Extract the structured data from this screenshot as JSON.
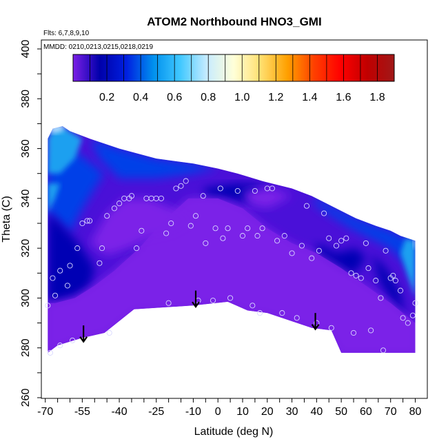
{
  "chart_data": {
    "type": "heatmap",
    "title": "ATOM2 Northbound HNO3_GMI",
    "notes": {
      "flights": "Flts: 6,7,8,9,10",
      "dates": "MMDD: 0210,0213,0215,0218,0219"
    },
    "xlabel": "Latitude (deg N)",
    "ylabel": "Theta (C)",
    "xlim": [
      -70,
      82
    ],
    "ylim": [
      260,
      400
    ],
    "x_ticks": [
      -70,
      -55,
      -40,
      -25,
      -10,
      0,
      10,
      20,
      30,
      40,
      50,
      60,
      70,
      80
    ],
    "y_ticks": [
      260,
      280,
      300,
      320,
      340,
      360,
      380,
      400
    ],
    "colorbar": {
      "range": [
        0,
        1.9
      ],
      "ticks": [
        0.2,
        0.4,
        0.6,
        0.8,
        1.0,
        1.2,
        1.4,
        1.6,
        1.8
      ],
      "tick_labels": [
        "0.2",
        "0.4",
        "0.6",
        "0.8",
        "1.0",
        "1.2",
        "1.4",
        "1.6",
        "1.8"
      ],
      "colors": [
        "#7b1fe6",
        "#0000aa",
        "#0020e0",
        "#0090ee",
        "#40c8ff",
        "#c8ecff",
        "#ffffd8",
        "#ffe070",
        "#ffa000",
        "#ff4000",
        "#ff0000",
        "#c00000",
        "#a01818"
      ]
    },
    "field_colors": {
      "low": "#7b22e8",
      "mid": "#4a10d8",
      "dark": "#0000b4",
      "blue": "#0040e8",
      "sky": "#1ea0f0",
      "pale": "#b8e4ff"
    },
    "field_outline": [
      [
        -69,
        278
      ],
      [
        -65,
        281
      ],
      [
        -55,
        284
      ],
      [
        -46,
        286
      ],
      [
        -34,
        295.5
      ],
      [
        -10,
        297
      ],
      [
        4,
        298.5
      ],
      [
        12,
        295
      ],
      [
        20,
        294
      ],
      [
        38,
        288
      ],
      [
        46,
        287
      ],
      [
        50,
        278
      ],
      [
        80,
        278
      ],
      [
        80,
        323
      ],
      [
        74,
        325
      ],
      [
        70,
        327
      ],
      [
        64,
        329
      ],
      [
        56,
        332
      ],
      [
        46,
        337
      ],
      [
        38,
        341
      ],
      [
        30,
        344
      ],
      [
        22,
        346
      ],
      [
        18,
        347
      ],
      [
        8,
        350
      ],
      [
        0,
        352
      ],
      [
        -10,
        354
      ],
      [
        -25,
        356
      ],
      [
        -40,
        360
      ],
      [
        -52,
        364
      ],
      [
        -60,
        367
      ],
      [
        -63,
        369
      ],
      [
        -67,
        368
      ],
      [
        -69,
        364
      ]
    ],
    "low_regions": [
      [
        [
          -69,
          278
        ],
        [
          -65,
          281
        ],
        [
          -55,
          284
        ],
        [
          -46,
          286
        ],
        [
          -34,
          295.5
        ],
        [
          -10,
          297
        ],
        [
          4,
          298.5
        ],
        [
          12,
          295
        ],
        [
          20,
          294
        ],
        [
          38,
          288
        ],
        [
          46,
          287
        ],
        [
          50,
          278
        ],
        [
          80,
          278
        ],
        [
          80,
          290
        ],
        [
          70,
          298
        ],
        [
          60,
          305
        ],
        [
          50,
          312
        ],
        [
          40,
          318
        ],
        [
          30,
          322
        ],
        [
          20,
          328
        ],
        [
          10,
          336
        ],
        [
          0,
          340
        ],
        [
          -12,
          340
        ],
        [
          -22,
          331
        ],
        [
          -32,
          320
        ],
        [
          -42,
          311
        ],
        [
          -50,
          305
        ],
        [
          -58,
          300
        ],
        [
          -66,
          298
        ],
        [
          -69,
          298
        ]
      ],
      [
        [
          -52,
          322
        ],
        [
          -45,
          334
        ],
        [
          -38,
          340
        ],
        [
          -28,
          340
        ],
        [
          -18,
          336
        ],
        [
          -10,
          331
        ],
        [
          -18,
          326
        ],
        [
          -28,
          324
        ],
        [
          -36,
          320
        ],
        [
          -45,
          317
        ]
      ],
      [
        [
          10,
          343
        ],
        [
          22,
          344
        ],
        [
          30,
          341
        ],
        [
          20,
          336
        ],
        [
          12,
          338
        ]
      ]
    ],
    "dark_regions": [
      [
        [
          -69,
          300
        ],
        [
          -66,
          298
        ],
        [
          -58,
          300
        ],
        [
          -52,
          304
        ],
        [
          -50,
          312
        ],
        [
          -55,
          320
        ],
        [
          -60,
          326
        ],
        [
          -66,
          332
        ],
        [
          -69,
          334
        ]
      ],
      [
        [
          -38,
          318
        ],
        [
          -30,
          314
        ],
        [
          -22,
          312
        ],
        [
          -14,
          316
        ],
        [
          -8,
          322
        ],
        [
          -12,
          326
        ],
        [
          -20,
          320
        ],
        [
          -28,
          318
        ]
      ],
      [
        [
          -6,
          344
        ],
        [
          8,
          346
        ],
        [
          18,
          345
        ],
        [
          12,
          338
        ],
        [
          4,
          340
        ],
        [
          -4,
          340
        ]
      ],
      [
        [
          40,
          322
        ],
        [
          48,
          318
        ],
        [
          56,
          320
        ],
        [
          60,
          316
        ],
        [
          54,
          308
        ],
        [
          46,
          308
        ],
        [
          40,
          314
        ]
      ],
      [
        [
          62,
          318
        ],
        [
          68,
          312
        ],
        [
          74,
          302
        ],
        [
          76,
          290
        ],
        [
          72,
          296
        ],
        [
          66,
          306
        ]
      ]
    ],
    "blue_regions": [
      [
        [
          -69,
          334
        ],
        [
          -66,
          332
        ],
        [
          -60,
          326
        ],
        [
          -56,
          334
        ],
        [
          -50,
          344
        ],
        [
          -46,
          350
        ],
        [
          -54,
          356
        ],
        [
          -60,
          360
        ],
        [
          -66,
          358
        ],
        [
          -69,
          350
        ]
      ],
      [
        [
          -40,
          348
        ],
        [
          -25,
          348
        ],
        [
          -10,
          350
        ],
        [
          0,
          352
        ],
        [
          -10,
          354
        ],
        [
          -25,
          356
        ],
        [
          -40,
          360
        ],
        [
          -52,
          364
        ],
        [
          -48,
          356
        ]
      ],
      [
        [
          38,
          341
        ],
        [
          46,
          337
        ],
        [
          56,
          332
        ],
        [
          64,
          329
        ],
        [
          70,
          327
        ],
        [
          74,
          325
        ],
        [
          80,
          323
        ],
        [
          80,
          306
        ],
        [
          76,
          314
        ],
        [
          70,
          320
        ],
        [
          62,
          324
        ],
        [
          54,
          328
        ],
        [
          46,
          333
        ],
        [
          40,
          337
        ]
      ]
    ],
    "sky_regions": [
      [
        [
          -69,
          364
        ],
        [
          -67,
          368
        ],
        [
          -63,
          369
        ],
        [
          -60,
          367
        ],
        [
          -55,
          364
        ],
        [
          -58,
          356
        ],
        [
          -64,
          350
        ],
        [
          -69,
          350
        ]
      ],
      [
        [
          -69,
          334
        ],
        [
          -66,
          340
        ],
        [
          -64,
          346
        ],
        [
          -69,
          346
        ]
      ],
      [
        [
          80,
          323
        ],
        [
          76,
          324
        ],
        [
          74,
          318
        ],
        [
          78,
          306
        ],
        [
          80,
          300
        ]
      ]
    ],
    "pale_regions": [
      [
        [
          -69,
          368
        ],
        [
          -66,
          369.5
        ],
        [
          -62,
          369.5
        ],
        [
          -63,
          367
        ],
        [
          -67,
          366
        ]
      ],
      [
        [
          79,
          324
        ],
        [
          80,
          324
        ],
        [
          80,
          320
        ],
        [
          79.2,
          320
        ]
      ]
    ],
    "obs_points": [
      [
        -69,
        297
      ],
      [
        -68,
        278
      ],
      [
        -67,
        308
      ],
      [
        -66,
        301
      ],
      [
        -64,
        311
      ],
      [
        -61,
        305
      ],
      [
        -60,
        313
      ],
      [
        -59,
        283
      ],
      [
        -64,
        281
      ],
      [
        -57,
        320
      ],
      [
        -55,
        330
      ],
      [
        -53,
        331
      ],
      [
        -52,
        331
      ],
      [
        -48,
        314
      ],
      [
        -47,
        320
      ],
      [
        -45,
        333
      ],
      [
        -44,
        286
      ],
      [
        -42,
        336
      ],
      [
        -40,
        338
      ],
      [
        -38,
        340
      ],
      [
        -36,
        340
      ],
      [
        -35,
        341
      ],
      [
        -33,
        320
      ],
      [
        -31,
        327
      ],
      [
        -29,
        340
      ],
      [
        -27,
        340
      ],
      [
        -25,
        340
      ],
      [
        -23,
        340
      ],
      [
        -21,
        326
      ],
      [
        -20,
        298
      ],
      [
        -19,
        330
      ],
      [
        -17,
        344
      ],
      [
        -15,
        345
      ],
      [
        -13,
        347
      ],
      [
        -11,
        329
      ],
      [
        -9,
        333
      ],
      [
        -8,
        299
      ],
      [
        -6,
        341
      ],
      [
        -5,
        322
      ],
      [
        -2,
        299
      ],
      [
        -1,
        328
      ],
      [
        1,
        344
      ],
      [
        2,
        324
      ],
      [
        4,
        328
      ],
      [
        5,
        300
      ],
      [
        8,
        343
      ],
      [
        10,
        325
      ],
      [
        12,
        328
      ],
      [
        14,
        297
      ],
      [
        15,
        343
      ],
      [
        16,
        325
      ],
      [
        17,
        294
      ],
      [
        18,
        328
      ],
      [
        20,
        344
      ],
      [
        22,
        344
      ],
      [
        24,
        323
      ],
      [
        26,
        294
      ],
      [
        27,
        325
      ],
      [
        30,
        318
      ],
      [
        32,
        292
      ],
      [
        34,
        321
      ],
      [
        36,
        337
      ],
      [
        38,
        316
      ],
      [
        40,
        290
      ],
      [
        41,
        319
      ],
      [
        43,
        334
      ],
      [
        45,
        324
      ],
      [
        46,
        288
      ],
      [
        48,
        321
      ],
      [
        50,
        323
      ],
      [
        52,
        324
      ],
      [
        54,
        310
      ],
      [
        55,
        286
      ],
      [
        56,
        309
      ],
      [
        58,
        308
      ],
      [
        60,
        322
      ],
      [
        61,
        312
      ],
      [
        62,
        287
      ],
      [
        64,
        307
      ],
      [
        66,
        300
      ],
      [
        67,
        279
      ],
      [
        68,
        319
      ],
      [
        70,
        308
      ],
      [
        71,
        309
      ],
      [
        72,
        307
      ],
      [
        74,
        303
      ],
      [
        75,
        292
      ],
      [
        77,
        290
      ],
      [
        79,
        293
      ],
      [
        80,
        298
      ]
    ],
    "arrows": [
      {
        "lat": -54.5,
        "theta_top": 289,
        "theta_tip": 282.5
      },
      {
        "lat": -9,
        "theta_top": 303,
        "theta_tip": 296.5
      },
      {
        "lat": 39.5,
        "theta_top": 294,
        "theta_tip": 287.5
      }
    ]
  }
}
